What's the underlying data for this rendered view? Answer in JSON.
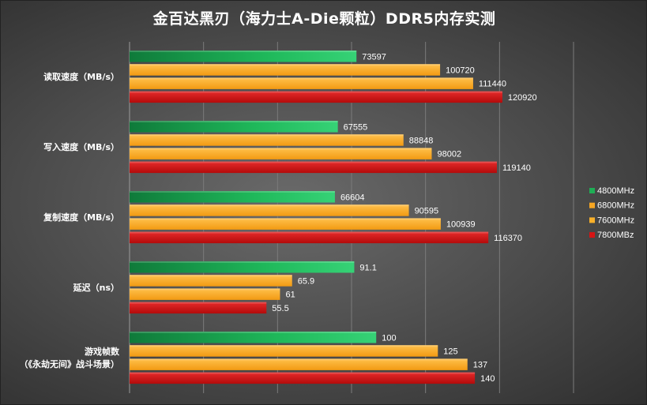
{
  "chart_data": {
    "type": "bar",
    "orientation": "horizontal",
    "title": "金百达黑刃（海力士A-Die颗粒）DDR5内存实测",
    "categories": [
      "读取速度（MB/s）",
      "写入速度（MB/s）",
      "复制速度（MB/s）",
      "延迟（ns）",
      "游戏帧数\n（《永劫无间》战斗场景）"
    ],
    "series": [
      {
        "name": "4800MHz",
        "color": "#1fae55",
        "values": [
          73597,
          67555,
          66604,
          91.1,
          100
        ]
      },
      {
        "name": "6800MHz",
        "color": "#f6a623",
        "values": [
          100720,
          88848,
          90595,
          65.9,
          125
        ]
      },
      {
        "name": "7600MHz",
        "color": "#f8b02a",
        "values": [
          111440,
          98002,
          100939,
          61,
          137
        ]
      },
      {
        "name": "7800MBz",
        "color": "#d61414",
        "values": [
          120920,
          119140,
          116370,
          55.5,
          140
        ]
      }
    ],
    "grid": true,
    "legend": "right"
  }
}
